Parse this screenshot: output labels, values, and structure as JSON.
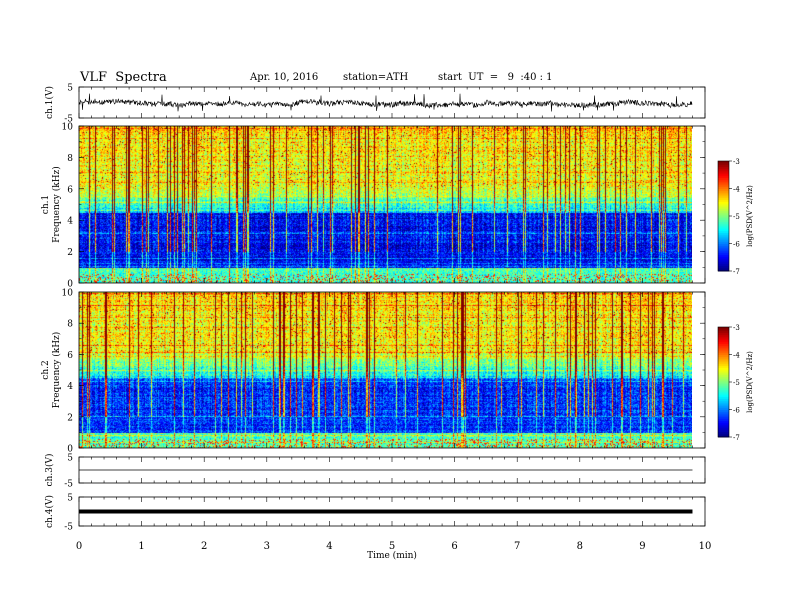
{
  "header": {
    "title": "VLF  Spectra",
    "date": "Apr. 10, 2016",
    "station": "station=ATH",
    "start": "start  UT  =   9  :40 : 1"
  },
  "chart_data": [
    {
      "id": "ch1-waveform",
      "type": "line",
      "ylabel": "ch.1(V)",
      "yticks": [
        "5",
        "-5"
      ],
      "ylim": [
        -5,
        5
      ],
      "xlim": [
        0,
        10
      ],
      "trace": "noisy signal around -0.3 V, amplitude about +/-1 V with occasional spikes"
    },
    {
      "id": "ch1-spectrogram",
      "type": "heatmap",
      "ylabel": "ch.1\nFrequency  (kHz)",
      "yticks": [
        "0",
        "2",
        "4",
        "6",
        "8",
        "10"
      ],
      "ylim": [
        0,
        10
      ],
      "xlim": [
        0,
        10
      ],
      "data_end_min": 9.8,
      "colorbar": {
        "label": "log(PSD(V^2/Hz)",
        "ticks": [
          "-3",
          "-4",
          "-5",
          "-6",
          "-7"
        ],
        "range": [
          -7,
          -3
        ]
      }
    },
    {
      "id": "ch2-spectrogram",
      "type": "heatmap",
      "ylabel": "ch.2\nFrequency  (kHz)",
      "yticks": [
        "0",
        "2",
        "4",
        "6",
        "8",
        "10"
      ],
      "ylim": [
        0,
        10
      ],
      "xlim": [
        0,
        10
      ],
      "data_end_min": 9.8,
      "colorbar": {
        "label": "log(PSD(V^2/Hz)",
        "ticks": [
          "-3",
          "-4",
          "-5",
          "-6",
          "-7"
        ],
        "range": [
          -7,
          -3
        ]
      }
    },
    {
      "id": "ch3-waveform",
      "type": "line",
      "ylabel": "ch.3(V)",
      "yticks": [
        "5",
        "-5"
      ],
      "ylim": [
        -5,
        5
      ],
      "xlim": [
        0,
        10
      ],
      "trace": "flat at about 0 V"
    },
    {
      "id": "ch4-waveform",
      "type": "line",
      "ylabel": "ch.4(V)",
      "yticks": [
        "5",
        "-5"
      ],
      "ylim": [
        -5,
        5
      ],
      "xlim": [
        0,
        10
      ],
      "trace": "thick constant band at about 0 V"
    }
  ],
  "xaxis": {
    "label": "Time  (min)",
    "ticks": [
      "0",
      "1",
      "2",
      "3",
      "4",
      "5",
      "6",
      "7",
      "8",
      "9",
      "10"
    ],
    "range": [
      0,
      10
    ]
  }
}
